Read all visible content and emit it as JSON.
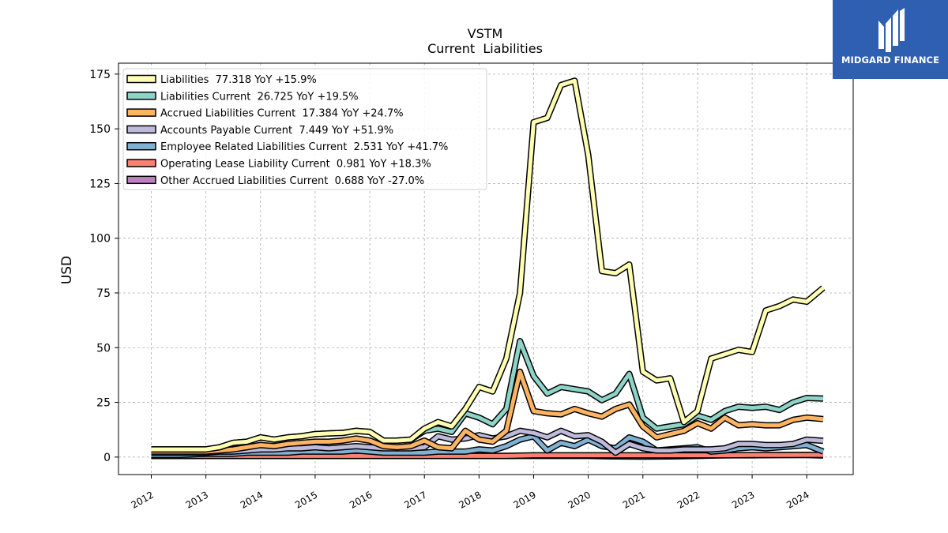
{
  "brand": {
    "name": "MIDGARD FINANCE",
    "color": "#2f5fb0"
  },
  "chart_data": {
    "type": "line",
    "title": "VSTM",
    "subtitle": "Current  Liabilities",
    "xlabel": "",
    "ylabel": "USD",
    "ylim": [
      -8,
      180
    ],
    "xlim": [
      2011.4,
      2024.85
    ],
    "yticks": [
      0,
      25,
      50,
      75,
      100,
      125,
      150,
      175
    ],
    "xticks": [
      2012,
      2013,
      2014,
      2015,
      2016,
      2017,
      2018,
      2019,
      2020,
      2021,
      2022,
      2023,
      2024
    ],
    "grid": true,
    "legend_position": "top-left",
    "series": [
      {
        "name": "Liabilities  77.318 YoY +15.9%",
        "color": "#ffffb3",
        "x": [
          2012.0,
          2012.5,
          2013.0,
          2013.25,
          2013.5,
          2013.75,
          2014.0,
          2014.25,
          2014.5,
          2014.75,
          2015.0,
          2015.25,
          2015.5,
          2015.75,
          2016.0,
          2016.25,
          2016.5,
          2016.75,
          2017.0,
          2017.25,
          2017.5,
          2017.75,
          2018.0,
          2018.25,
          2018.5,
          2018.75,
          2019.0,
          2019.25,
          2019.5,
          2019.75,
          2020.0,
          2020.25,
          2020.5,
          2020.75,
          2021.0,
          2021.25,
          2021.5,
          2021.75,
          2022.0,
          2022.25,
          2022.5,
          2022.75,
          2023.0,
          2023.25,
          2023.5,
          2023.75,
          2024.0,
          2024.3
        ],
        "values": [
          3.5,
          3.5,
          3.5,
          4.5,
          6.5,
          7.0,
          9.0,
          8.0,
          9.0,
          9.5,
          10.5,
          10.8,
          11.0,
          12.0,
          11.5,
          7.5,
          7.5,
          8.0,
          13.0,
          16.0,
          14.0,
          22.0,
          32.0,
          30.0,
          45.0,
          75.0,
          153.0,
          155.0,
          170.0,
          172.0,
          138.0,
          85.0,
          84.0,
          88.0,
          39.0,
          35.0,
          36.0,
          16.0,
          21.0,
          45.0,
          47.0,
          49.0,
          48.0,
          67.0,
          69.0,
          72.0,
          71.0,
          77.318
        ]
      },
      {
        "name": "Liabilities Current  26.725 YoY +19.5%",
        "color": "#8dd3c7",
        "x": [
          2012.0,
          2012.5,
          2013.0,
          2013.25,
          2013.5,
          2013.75,
          2014.0,
          2014.25,
          2014.5,
          2014.75,
          2015.0,
          2015.25,
          2015.5,
          2015.75,
          2016.0,
          2016.25,
          2016.5,
          2016.75,
          2017.0,
          2017.25,
          2017.5,
          2017.75,
          2018.0,
          2018.25,
          2018.5,
          2018.75,
          2019.0,
          2019.25,
          2019.5,
          2019.75,
          2020.0,
          2020.25,
          2020.5,
          2020.75,
          2021.0,
          2021.25,
          2021.5,
          2021.75,
          2022.0,
          2022.25,
          2022.5,
          2022.75,
          2023.0,
          2023.25,
          2023.5,
          2023.75,
          2024.0,
          2024.3
        ],
        "values": [
          3.5,
          3.5,
          3.5,
          4.5,
          6.5,
          7.0,
          9.0,
          8.0,
          9.0,
          9.5,
          10.5,
          10.8,
          11.0,
          12.0,
          11.5,
          7.5,
          7.5,
          8.0,
          12.0,
          13.0,
          11.5,
          20.0,
          18.0,
          15.0,
          22.0,
          53.0,
          37.0,
          29.0,
          32.0,
          31.0,
          30.0,
          26.0,
          29.0,
          38.0,
          18.0,
          13.0,
          14.0,
          15.0,
          19.0,
          17.0,
          21.0,
          23.0,
          22.5,
          23.0,
          21.5,
          25.0,
          27.0,
          26.725
        ]
      },
      {
        "name": "Accrued Liabilities Current  17.384 YoY +24.7%",
        "color": "#fdb462",
        "x": [
          2012.0,
          2012.5,
          2013.0,
          2013.25,
          2013.5,
          2013.75,
          2014.0,
          2014.25,
          2014.5,
          2014.75,
          2015.0,
          2015.25,
          2015.5,
          2015.75,
          2016.0,
          2016.25,
          2016.5,
          2016.75,
          2017.0,
          2017.25,
          2017.5,
          2017.75,
          2018.0,
          2018.25,
          2018.5,
          2018.75,
          2019.0,
          2019.25,
          2019.5,
          2019.75,
          2020.0,
          2020.25,
          2020.5,
          2020.75,
          2021.0,
          2021.25,
          2021.5,
          2021.75,
          2022.0,
          2022.25,
          2022.5,
          2022.75,
          2023.0,
          2023.25,
          2023.5,
          2023.75,
          2024.0,
          2024.3
        ],
        "values": [
          2.5,
          2.5,
          2.5,
          3.0,
          3.5,
          4.5,
          5.5,
          5.0,
          6.0,
          6.5,
          7.0,
          7.0,
          7.5,
          8.5,
          7.5,
          5.0,
          4.5,
          5.0,
          7.5,
          4.5,
          4.0,
          12.0,
          8.0,
          7.0,
          12.0,
          39.0,
          21.0,
          20.0,
          19.5,
          22.0,
          20.0,
          18.5,
          22.0,
          24.0,
          14.0,
          9.0,
          10.5,
          12.0,
          15.5,
          13.0,
          18.0,
          14.5,
          15.0,
          14.5,
          14.5,
          17.0,
          18.0,
          17.384
        ]
      },
      {
        "name": "Accounts Payable Current  7.449 YoY +51.9%",
        "color": "#bebada",
        "x": [
          2012.0,
          2012.5,
          2013.0,
          2013.25,
          2013.5,
          2013.75,
          2014.0,
          2014.25,
          2014.5,
          2014.75,
          2015.0,
          2015.25,
          2015.5,
          2015.75,
          2016.0,
          2016.25,
          2016.5,
          2016.75,
          2017.0,
          2017.25,
          2017.5,
          2017.75,
          2018.0,
          2018.25,
          2018.5,
          2018.75,
          2019.0,
          2019.25,
          2019.5,
          2019.75,
          2020.0,
          2020.25,
          2020.5,
          2020.75,
          2021.0,
          2021.25,
          2021.5,
          2021.75,
          2022.0,
          2022.25,
          2022.5,
          2022.75,
          2023.0,
          2023.25,
          2023.5,
          2023.75,
          2024.0,
          2024.3
        ],
        "values": [
          2.0,
          2.0,
          2.0,
          2.5,
          2.5,
          3.0,
          3.5,
          3.5,
          4.0,
          4.0,
          4.5,
          4.0,
          4.5,
          5.0,
          4.5,
          4.0,
          4.0,
          4.0,
          4.5,
          9.5,
          8.0,
          8.5,
          10.0,
          8.5,
          9.5,
          12.0,
          11.0,
          9.0,
          12.0,
          9.5,
          10.0,
          7.0,
          2.0,
          6.0,
          4.0,
          3.0,
          3.0,
          3.5,
          3.5,
          3.5,
          4.0,
          6.0,
          6.0,
          5.5,
          5.5,
          6.0,
          8.0,
          7.449
        ]
      },
      {
        "name": "Employee Related Liabilities Current  2.531 YoY +41.7%",
        "color": "#80b1d3",
        "x": [
          2012.0,
          2012.5,
          2013.0,
          2013.25,
          2013.5,
          2013.75,
          2014.0,
          2014.25,
          2014.5,
          2014.75,
          2015.0,
          2015.25,
          2015.5,
          2015.75,
          2016.0,
          2016.25,
          2016.5,
          2016.75,
          2017.0,
          2017.25,
          2017.5,
          2017.75,
          2018.0,
          2018.25,
          2018.5,
          2018.75,
          2019.0,
          2019.25,
          2019.5,
          2019.75,
          2020.0,
          2020.25,
          2020.5,
          2020.75,
          2021.0,
          2021.25,
          2021.5,
          2021.75,
          2022.0,
          2022.25,
          2022.5,
          2022.75,
          2023.0,
          2023.25,
          2023.5,
          2023.75,
          2024.0,
          2024.3
        ],
        "values": [
          1.0,
          1.0,
          1.5,
          1.5,
          1.5,
          2.0,
          2.0,
          2.0,
          2.0,
          2.5,
          2.5,
          2.5,
          2.5,
          3.0,
          2.5,
          2.0,
          2.0,
          2.0,
          2.0,
          2.5,
          2.5,
          2.5,
          3.5,
          3.0,
          5.0,
          8.0,
          9.5,
          3.0,
          6.5,
          5.0,
          8.0,
          5.0,
          4.0,
          9.0,
          7.0,
          3.0,
          3.5,
          4.0,
          4.5,
          2.5,
          3.0,
          4.0,
          4.5,
          4.0,
          4.5,
          5.0,
          5.5,
          2.531
        ]
      },
      {
        "name": "Operating Lease Liability Current  0.981 YoY +18.3%",
        "color": "#fb8072",
        "x": [
          2012.0,
          2012.5,
          2013.0,
          2013.5,
          2014.0,
          2014.5,
          2015.0,
          2015.5,
          2016.0,
          2016.5,
          2017.0,
          2017.5,
          2018.0,
          2018.5,
          2019.0,
          2019.5,
          2020.0,
          2020.5,
          2021.0,
          2021.5,
          2022.0,
          2022.5,
          2023.0,
          2023.5,
          2024.0,
          2024.3
        ],
        "values": [
          0.5,
          0.5,
          0.5,
          0.5,
          0.5,
          0.5,
          0.5,
          0.5,
          0.5,
          0.5,
          0.5,
          0.5,
          0.5,
          0.5,
          0.8,
          0.8,
          0.8,
          0.8,
          0.8,
          0.8,
          0.8,
          0.8,
          0.9,
          0.9,
          1.0,
          0.981
        ]
      },
      {
        "name": "Other Accrued Liabilities Current  0.688 YoY -27.0%",
        "color": "#bc80bd",
        "x": [
          2012.0,
          2012.5,
          2013.0,
          2013.5,
          2014.0,
          2014.5,
          2015.0,
          2015.5,
          2016.0,
          2016.5,
          2017.0,
          2017.5,
          2018.0,
          2018.5,
          2019.0,
          2019.5,
          2020.0,
          2020.5,
          2021.0,
          2021.5,
          2022.0,
          2022.5,
          2023.0,
          2023.5,
          2024.0,
          2024.3
        ],
        "values": [
          0.5,
          0.5,
          0.5,
          0.5,
          0.5,
          0.5,
          0.5,
          0.5,
          0.5,
          0.5,
          0.5,
          0.5,
          0.5,
          0.5,
          0.5,
          0.5,
          0.5,
          0.3,
          0.2,
          0.3,
          0.5,
          0.8,
          0.8,
          0.9,
          0.9,
          0.688
        ]
      }
    ]
  }
}
